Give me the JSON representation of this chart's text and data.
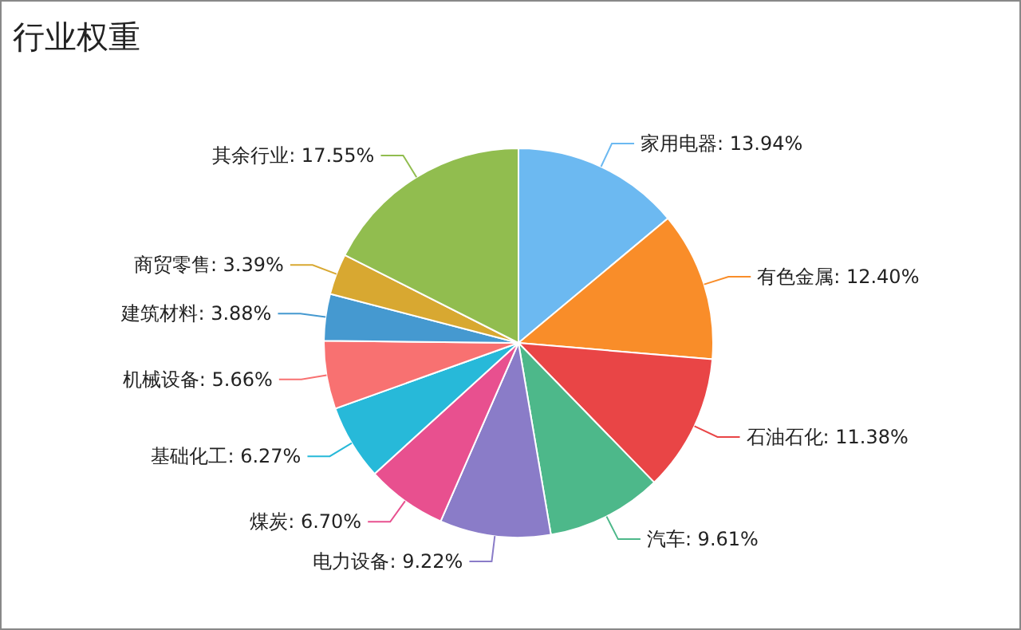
{
  "chart_data": {
    "type": "pie",
    "title": "行业权重",
    "categories": [
      "家用电器",
      "有色金属",
      "石油石化",
      "汽车",
      "电力设备",
      "煤炭",
      "基础化工",
      "机械设备",
      "建筑材料",
      "商贸零售",
      "其余行业"
    ],
    "values": [
      13.94,
      12.4,
      11.38,
      9.61,
      9.22,
      6.7,
      6.27,
      5.66,
      3.88,
      3.39,
      17.55
    ],
    "value_labels": [
      "13.94%",
      "12.40%",
      "11.38%",
      "9.61%",
      "9.22%",
      "6.70%",
      "6.27%",
      "5.66%",
      "3.88%",
      "3.39%",
      "17.55%"
    ],
    "colors": [
      "#6cb9f1",
      "#f98d29",
      "#e94546",
      "#4db88a",
      "#8a7cc8",
      "#e8508f",
      "#27b9d9",
      "#f87171",
      "#4599d0",
      "#d8a831",
      "#91bd4f"
    ]
  }
}
